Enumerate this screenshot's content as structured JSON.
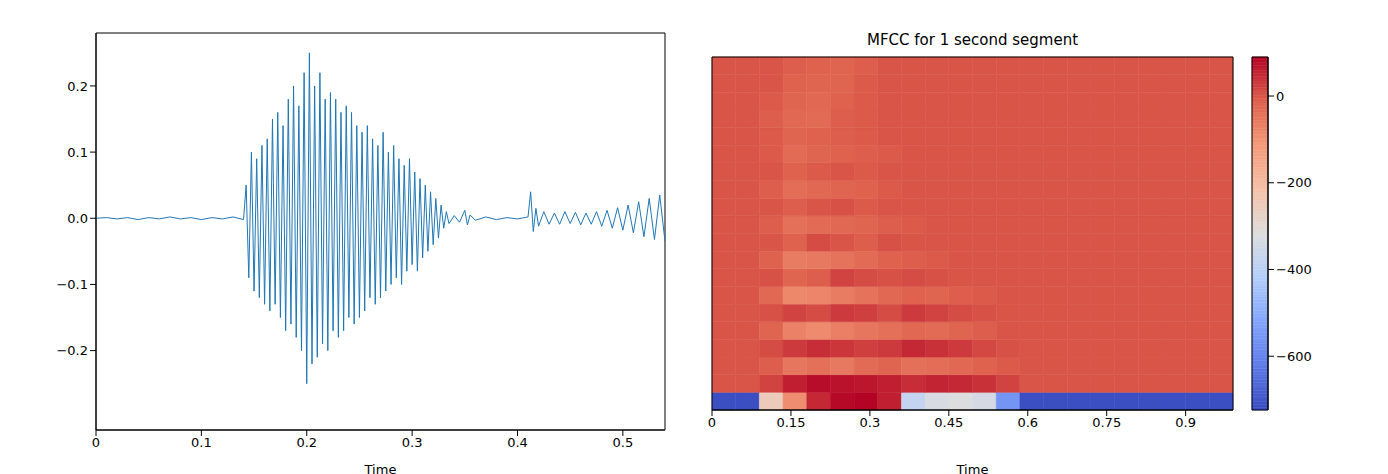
{
  "chart_data": [
    {
      "type": "line",
      "x_label": "Time",
      "color": "#1f77b4",
      "x": [
        0,
        0.01,
        0.02,
        0.03,
        0.04,
        0.05,
        0.06,
        0.07,
        0.08,
        0.09,
        0.1,
        0.11,
        0.12,
        0.13,
        0.14,
        0.1425,
        0.145,
        0.1475,
        0.15,
        0.1525,
        0.155,
        0.1575,
        0.16,
        0.1625,
        0.165,
        0.1675,
        0.17,
        0.1725,
        0.175,
        0.1775,
        0.18,
        0.1825,
        0.185,
        0.1875,
        0.19,
        0.1925,
        0.195,
        0.1975,
        0.2,
        0.2025,
        0.205,
        0.2075,
        0.21,
        0.2125,
        0.215,
        0.2175,
        0.22,
        0.2225,
        0.225,
        0.2275,
        0.23,
        0.2325,
        0.235,
        0.2375,
        0.24,
        0.2425,
        0.245,
        0.2475,
        0.25,
        0.2525,
        0.255,
        0.2575,
        0.26,
        0.2625,
        0.265,
        0.2675,
        0.27,
        0.2725,
        0.275,
        0.2775,
        0.28,
        0.2825,
        0.285,
        0.2875,
        0.29,
        0.2925,
        0.295,
        0.2975,
        0.3,
        0.3025,
        0.305,
        0.3075,
        0.31,
        0.3125,
        0.315,
        0.3175,
        0.32,
        0.3225,
        0.325,
        0.3275,
        0.33,
        0.3325,
        0.335,
        0.34,
        0.345,
        0.35,
        0.3525,
        0.355,
        0.36,
        0.37,
        0.38,
        0.39,
        0.4,
        0.41,
        0.4125,
        0.415,
        0.4175,
        0.42,
        0.425,
        0.43,
        0.435,
        0.44,
        0.445,
        0.45,
        0.455,
        0.46,
        0.465,
        0.47,
        0.475,
        0.48,
        0.485,
        0.49,
        0.495,
        0.5,
        0.505,
        0.51,
        0.515,
        0.52,
        0.525,
        0.53,
        0.535,
        0.54
      ],
      "values": [
        0,
        0.001,
        -0.001,
        0.001,
        -0.002,
        0.001,
        -0.001,
        0.002,
        -0.001,
        0.001,
        -0.002,
        0.001,
        -0.001,
        0.002,
        -0.002,
        0.05,
        -0.09,
        0.1,
        -0.11,
        0.09,
        -0.12,
        0.11,
        -0.13,
        0.12,
        -0.14,
        0.15,
        -0.13,
        0.16,
        -0.15,
        0.14,
        -0.17,
        0.18,
        -0.16,
        0.2,
        -0.18,
        0.17,
        -0.2,
        0.22,
        -0.25,
        0.25,
        -0.22,
        0.2,
        -0.21,
        0.22,
        -0.19,
        0.18,
        -0.2,
        0.19,
        -0.17,
        0.18,
        -0.18,
        0.16,
        -0.17,
        0.17,
        -0.15,
        0.16,
        -0.16,
        0.14,
        -0.15,
        0.13,
        -0.14,
        0.14,
        -0.12,
        0.12,
        -0.13,
        0.11,
        -0.12,
        0.13,
        -0.11,
        0.1,
        -0.1,
        0.11,
        -0.09,
        0.09,
        -0.1,
        0.08,
        -0.08,
        0.09,
        -0.07,
        0.07,
        -0.08,
        0.06,
        -0.06,
        0.05,
        -0.05,
        0.04,
        -0.04,
        0.03,
        -0.03,
        0.02,
        -0.015,
        0.01,
        -0.008,
        0.004,
        -0.006,
        0.012,
        -0.01,
        0.005,
        -0.003,
        0.002,
        -0.002,
        0.001,
        -0.001,
        0.002,
        0.04,
        -0.02,
        0.015,
        -0.012,
        0.01,
        -0.009,
        0.008,
        -0.009,
        0.01,
        -0.008,
        0.009,
        -0.01,
        0.008,
        -0.009,
        0.01,
        -0.012,
        0.012,
        -0.015,
        0.016,
        -0.018,
        0.02,
        -0.022,
        0.025,
        -0.028,
        0.03,
        -0.032,
        0.035,
        -0.035
      ],
      "xlim": [
        0,
        0.54
      ],
      "xticks": [
        0,
        0.1,
        0.2,
        0.3,
        0.4,
        0.5
      ],
      "ylim": [
        -0.32,
        0.28
      ],
      "yticks": [
        {
          "value": -0.2,
          "label": "−0.2"
        },
        {
          "value": -0.1,
          "label": "−0.1"
        },
        {
          "value": 0,
          "label": "0.0"
        },
        {
          "value": 0.1,
          "label": "0.1"
        },
        {
          "value": 0.2,
          "label": "0.2"
        }
      ]
    },
    {
      "type": "heatmap",
      "title": "MFCC for 1 second segment",
      "x_label": "Time",
      "color": "coolwarm",
      "tick_labels": "x",
      "x_edges": [
        0,
        0.045,
        0.09,
        0.135,
        0.18,
        0.225,
        0.27,
        0.315,
        0.36,
        0.405,
        0.45,
        0.495,
        0.54,
        0.585,
        0.63,
        0.675,
        0.72,
        0.765,
        0.81,
        0.855,
        0.9,
        0.945,
        0.99
      ],
      "xlim": [
        0,
        0.99
      ],
      "xticks": [
        0,
        0.15,
        0.3,
        0.45,
        0.6,
        0.75,
        0.9
      ],
      "ylim": [
        0,
        20
      ],
      "cells": [
        [
          -720,
          -720,
          -250,
          -90,
          50,
          85,
          90,
          60,
          -380,
          -330,
          -320,
          -340,
          -560,
          -720,
          -720,
          -720,
          -720,
          -720,
          -720,
          -720,
          -720,
          -720
        ],
        [
          0,
          0,
          20,
          60,
          80,
          75,
          70,
          60,
          45,
          55,
          50,
          40,
          20,
          0,
          0,
          0,
          0,
          0,
          0,
          0,
          0,
          0
        ],
        [
          0,
          0,
          -10,
          -50,
          -40,
          -55,
          -30,
          -20,
          -40,
          -35,
          -25,
          -15,
          -5,
          0,
          0,
          0,
          0,
          0,
          0,
          0,
          0,
          0
        ],
        [
          0,
          0,
          10,
          30,
          45,
          35,
          25,
          30,
          50,
          40,
          30,
          15,
          5,
          0,
          0,
          0,
          0,
          0,
          0,
          0,
          0,
          0
        ],
        [
          0,
          0,
          -20,
          -70,
          -85,
          -65,
          -50,
          -40,
          -25,
          -30,
          -20,
          -10,
          0,
          0,
          0,
          0,
          0,
          0,
          0,
          0,
          0,
          0
        ],
        [
          0,
          0,
          5,
          20,
          10,
          30,
          25,
          10,
          30,
          20,
          10,
          5,
          0,
          0,
          0,
          0,
          0,
          0,
          0,
          0,
          0,
          0
        ],
        [
          0,
          0,
          -25,
          -80,
          -75,
          -60,
          -45,
          -25,
          -15,
          -20,
          -10,
          -5,
          0,
          0,
          0,
          0,
          0,
          0,
          0,
          0,
          0,
          0
        ],
        [
          0,
          0,
          5,
          -20,
          -10,
          20,
          10,
          5,
          10,
          5,
          0,
          0,
          0,
          0,
          0,
          0,
          0,
          0,
          0,
          0,
          0,
          0
        ],
        [
          0,
          0,
          -15,
          -60,
          -55,
          -45,
          -30,
          -15,
          -10,
          -5,
          0,
          0,
          0,
          0,
          0,
          0,
          0,
          0,
          0,
          0,
          0,
          0
        ],
        [
          0,
          0,
          0,
          -15,
          10,
          0,
          -10,
          5,
          0,
          0,
          0,
          0,
          0,
          0,
          0,
          0,
          0,
          0,
          0,
          0,
          0,
          0
        ],
        [
          0,
          0,
          -10,
          -40,
          -30,
          -25,
          -20,
          -10,
          -5,
          0,
          0,
          0,
          0,
          0,
          0,
          0,
          0,
          0,
          0,
          0,
          0,
          0
        ],
        [
          0,
          0,
          0,
          -10,
          0,
          5,
          -5,
          0,
          0,
          0,
          0,
          0,
          0,
          0,
          0,
          0,
          0,
          0,
          0,
          0,
          0,
          0
        ],
        [
          0,
          0,
          -10,
          -35,
          -25,
          -20,
          -15,
          -5,
          0,
          0,
          0,
          0,
          0,
          0,
          0,
          0,
          0,
          0,
          0,
          0,
          0,
          0
        ],
        [
          0,
          0,
          0,
          -15,
          -5,
          0,
          -5,
          0,
          0,
          0,
          0,
          0,
          0,
          0,
          0,
          0,
          0,
          0,
          0,
          0,
          0,
          0
        ],
        [
          0,
          0,
          -5,
          -30,
          -20,
          -15,
          -10,
          -5,
          0,
          0,
          0,
          0,
          0,
          0,
          0,
          0,
          0,
          0,
          0,
          0,
          0,
          0
        ],
        [
          0,
          0,
          -5,
          -20,
          -15,
          -10,
          -5,
          0,
          0,
          0,
          0,
          0,
          0,
          0,
          0,
          0,
          0,
          0,
          0,
          0,
          0,
          0
        ],
        [
          0,
          0,
          -10,
          -25,
          -30,
          -10,
          -5,
          0,
          0,
          0,
          0,
          0,
          0,
          0,
          0,
          0,
          0,
          0,
          0,
          0,
          0,
          0
        ],
        [
          0,
          0,
          -5,
          -20,
          -25,
          -15,
          -5,
          0,
          0,
          0,
          0,
          0,
          0,
          0,
          0,
          0,
          0,
          0,
          0,
          0,
          0,
          0
        ],
        [
          0,
          0,
          0,
          -15,
          -20,
          -20,
          -5,
          0,
          0,
          0,
          0,
          0,
          0,
          0,
          0,
          0,
          0,
          0,
          0,
          0,
          0,
          0
        ],
        [
          0,
          0,
          0,
          -10,
          -15,
          -20,
          -10,
          0,
          0,
          0,
          0,
          0,
          0,
          0,
          0,
          0,
          0,
          0,
          0,
          0,
          0,
          0
        ]
      ],
      "color_range": [
        -724,
        90
      ],
      "color_ticks": [
        {
          "value": 0,
          "label": "0"
        },
        {
          "value": -200,
          "label": "−200"
        },
        {
          "value": -400,
          "label": "−400"
        },
        {
          "value": -600,
          "label": "−600"
        }
      ]
    }
  ]
}
